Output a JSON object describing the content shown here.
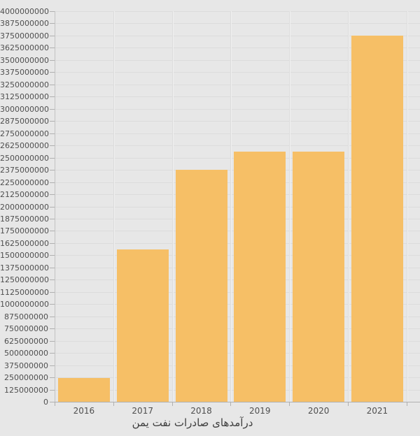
{
  "chart_data": {
    "type": "bar",
    "title": "درآمدهای صادرات نفت یمن",
    "categories": [
      "2016",
      "2017",
      "2018",
      "2019",
      "2020",
      "2021"
    ],
    "values": [
      240000000,
      1560000000,
      2375000000,
      2565000000,
      2560000000,
      3750000000
    ],
    "ylim": [
      0,
      4000000000
    ],
    "ytick_step": 125000000,
    "xlabel": "",
    "ylabel": "",
    "grid": "on",
    "legend": "none",
    "y_tick_labels": [
      "4000000000",
      "3875000000",
      "3750000000",
      "3625000000",
      "3500000000",
      "3375000000",
      "3250000000",
      "3125000000",
      "3000000000",
      "2875000000",
      "2750000000",
      "2625000000",
      "2500000000",
      "2375000000",
      "2250000000",
      "2125000000",
      "2000000000",
      "1875000000",
      "1750000000",
      "1625000000",
      "1500000000",
      "1375000000",
      "1250000000",
      "1125000000",
      "1000000000",
      "875000000",
      "750000000",
      "625000000",
      "500000000",
      "375000000",
      "250000000",
      "125000000",
      "0"
    ],
    "colors": {
      "bar": "#f6bf66",
      "background": "#e7e7e7",
      "gridline": "#dcdcdc",
      "axis": "#b0b0b0",
      "tick_label": "#4f4f4f",
      "title": "#3e3e3e"
    }
  }
}
